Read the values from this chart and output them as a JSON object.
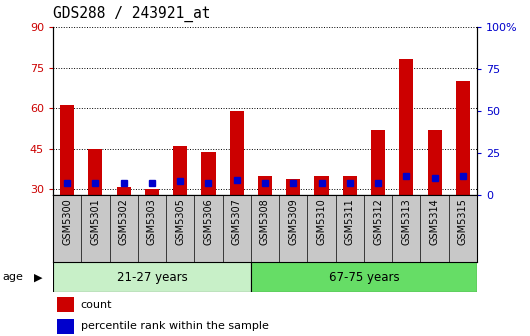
{
  "title": "GDS288 / 243921_at",
  "samples": [
    "GSM5300",
    "GSM5301",
    "GSM5302",
    "GSM5303",
    "GSM5305",
    "GSM5306",
    "GSM5307",
    "GSM5308",
    "GSM5309",
    "GSM5310",
    "GSM5311",
    "GSM5312",
    "GSM5313",
    "GSM5314",
    "GSM5315"
  ],
  "count": [
    61,
    45,
    31,
    30,
    46,
    44,
    59,
    35,
    34,
    35,
    35,
    52,
    78,
    52,
    70
  ],
  "percentile": [
    7,
    7,
    7,
    7,
    8,
    7,
    9,
    7,
    7,
    7,
    7,
    7,
    11,
    10,
    11
  ],
  "age_groups": [
    {
      "label": "21-27 years",
      "start": 0,
      "end": 7,
      "color": "#c8f0c8"
    },
    {
      "label": "67-75 years",
      "start": 7,
      "end": 15,
      "color": "#66dd66"
    }
  ],
  "ylim_left": [
    28,
    90
  ],
  "ylim_right": [
    0,
    100
  ],
  "yticks_left": [
    30,
    45,
    60,
    75,
    90
  ],
  "yticks_right": [
    0,
    25,
    50,
    75,
    100
  ],
  "bar_color": "#cc0000",
  "pct_color": "#0000cc",
  "bar_width": 0.5,
  "left_tick_color": "#cc0000",
  "right_tick_color": "#0000cc",
  "xtick_area_color": "#c8c8c8",
  "plot_bg_color": "#ffffff",
  "figure_bg_color": "#ffffff"
}
